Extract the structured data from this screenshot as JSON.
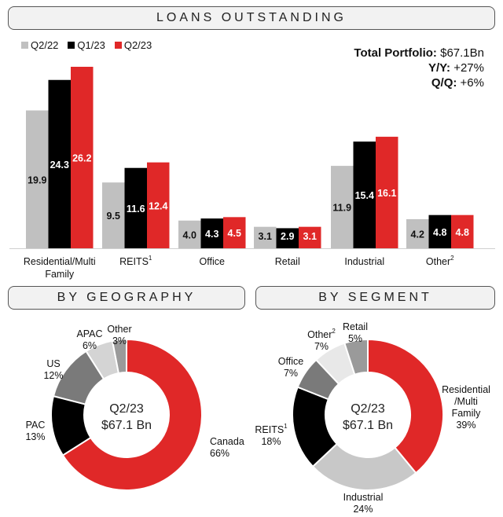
{
  "header": {
    "title": "LOANS OUTSTANDING"
  },
  "summary": {
    "total_label": "Total Portfolio:",
    "total_value": "$67.1Bn",
    "yy_label": "Y/Y:",
    "yy_value": "+27%",
    "qq_label": "Q/Q:",
    "qq_value": "+6%"
  },
  "geo_section": {
    "title": "BY GEOGRAPHY"
  },
  "seg_section": {
    "title": "BY SEGMENT"
  },
  "colors": {
    "q222": "#c0c0c0",
    "q123": "#000000",
    "q223": "#e02828",
    "other_grey": "#9a9a9a",
    "light_grey": "#e8e8e8",
    "mid_grey": "#7a7a7a"
  },
  "chart_data": [
    {
      "type": "bar",
      "categories": [
        "Residential/Multi Family",
        "REITS",
        "Office",
        "Retail",
        "Industrial",
        "Other"
      ],
      "category_superscripts": [
        "",
        "1",
        "",
        "",
        "",
        "2"
      ],
      "series": [
        {
          "name": "Q2/22",
          "values": [
            19.9,
            9.5,
            4.0,
            3.1,
            11.9,
            4.2
          ]
        },
        {
          "name": "Q1/23",
          "values": [
            24.3,
            11.6,
            4.3,
            2.9,
            15.4,
            4.8
          ]
        },
        {
          "name": "Q2/23",
          "values": [
            26.2,
            12.4,
            4.5,
            3.1,
            16.1,
            4.8
          ]
        }
      ],
      "legend": "top-left",
      "grid": false
    },
    {
      "type": "pie",
      "title": "BY GEOGRAPHY",
      "center_text": [
        "Q2/23",
        "$67.1 Bn"
      ],
      "slices": [
        {
          "label": "Canada",
          "value": 66,
          "text": "66%"
        },
        {
          "label": "PAC",
          "value": 13,
          "text": "13%"
        },
        {
          "label": "US",
          "value": 12,
          "text": "12%"
        },
        {
          "label": "APAC",
          "value": 6,
          "text": "6%"
        },
        {
          "label": "Other",
          "value": 3,
          "text": "3%"
        }
      ]
    },
    {
      "type": "pie",
      "title": "BY SEGMENT",
      "center_text": [
        "Q2/23",
        "$67.1 Bn"
      ],
      "slices": [
        {
          "label": "Residential /Multi Family",
          "value": 39,
          "text": "39%"
        },
        {
          "label": "Industrial",
          "value": 24,
          "text": "24%"
        },
        {
          "label": "REITS",
          "value": 18,
          "text": "18%",
          "superscript": "1"
        },
        {
          "label": "Office",
          "value": 7,
          "text": "7%"
        },
        {
          "label": "Other",
          "value": 7,
          "text": "7%",
          "superscript": "2"
        },
        {
          "label": "Retail",
          "value": 5,
          "text": "5%"
        }
      ]
    }
  ]
}
